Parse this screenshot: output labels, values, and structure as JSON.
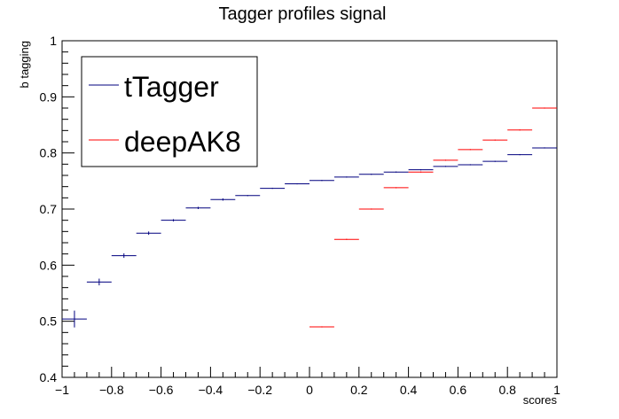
{
  "chart_data": {
    "type": "scatter",
    "title": "Tagger profiles signal",
    "xlabel": "scores",
    "ylabel": "b tagging",
    "xlim": [
      -1,
      1
    ],
    "ylim": [
      0.4,
      1
    ],
    "x_ticks": [
      "−1",
      "−0.8",
      "−0.6",
      "−0.4",
      "−0.2",
      "0",
      "0.2",
      "0.4",
      "0.6",
      "0.8",
      "1"
    ],
    "y_ticks": [
      "0.4",
      "0.5",
      "0.6",
      "0.7",
      "0.8",
      "0.9",
      "1"
    ],
    "legend_position": "top-left",
    "bin_width": 0.1,
    "series": [
      {
        "name": "tTagger",
        "color": "#00007f",
        "points": [
          {
            "x": -0.95,
            "y": 0.504,
            "yerr": 0.015
          },
          {
            "x": -0.85,
            "y": 0.57,
            "yerr": 0.006
          },
          {
            "x": -0.75,
            "y": 0.617,
            "yerr": 0.004
          },
          {
            "x": -0.65,
            "y": 0.657,
            "yerr": 0.003
          },
          {
            "x": -0.55,
            "y": 0.68,
            "yerr": 0.002
          },
          {
            "x": -0.45,
            "y": 0.702,
            "yerr": 0.002
          },
          {
            "x": -0.35,
            "y": 0.717,
            "yerr": 0.002
          },
          {
            "x": -0.25,
            "y": 0.724,
            "yerr": 0.001
          },
          {
            "x": -0.15,
            "y": 0.737,
            "yerr": 0.001
          },
          {
            "x": -0.05,
            "y": 0.745,
            "yerr": 0.001
          },
          {
            "x": 0.05,
            "y": 0.751,
            "yerr": 0.001
          },
          {
            "x": 0.15,
            "y": 0.757,
            "yerr": 0.001
          },
          {
            "x": 0.25,
            "y": 0.762,
            "yerr": 0.001
          },
          {
            "x": 0.35,
            "y": 0.766,
            "yerr": 0.001
          },
          {
            "x": 0.45,
            "y": 0.77,
            "yerr": 0.001
          },
          {
            "x": 0.55,
            "y": 0.776,
            "yerr": 0.001
          },
          {
            "x": 0.65,
            "y": 0.779,
            "yerr": 0.001
          },
          {
            "x": 0.75,
            "y": 0.785,
            "yerr": 0.001
          },
          {
            "x": 0.85,
            "y": 0.797,
            "yerr": 0.001
          },
          {
            "x": 0.95,
            "y": 0.809,
            "yerr": 0.001
          }
        ]
      },
      {
        "name": "deepAK8",
        "color": "#ff0000",
        "points": [
          {
            "x": 0.05,
            "y": 0.49,
            "yerr": 0.001
          },
          {
            "x": 0.15,
            "y": 0.646,
            "yerr": 0.001
          },
          {
            "x": 0.25,
            "y": 0.7,
            "yerr": 0.001
          },
          {
            "x": 0.35,
            "y": 0.738,
            "yerr": 0.001
          },
          {
            "x": 0.45,
            "y": 0.766,
            "yerr": 0.001
          },
          {
            "x": 0.55,
            "y": 0.787,
            "yerr": 0.001
          },
          {
            "x": 0.65,
            "y": 0.806,
            "yerr": 0.001
          },
          {
            "x": 0.75,
            "y": 0.823,
            "yerr": 0.001
          },
          {
            "x": 0.85,
            "y": 0.841,
            "yerr": 0.001
          },
          {
            "x": 0.95,
            "y": 0.88,
            "yerr": 0.001
          }
        ]
      }
    ]
  }
}
